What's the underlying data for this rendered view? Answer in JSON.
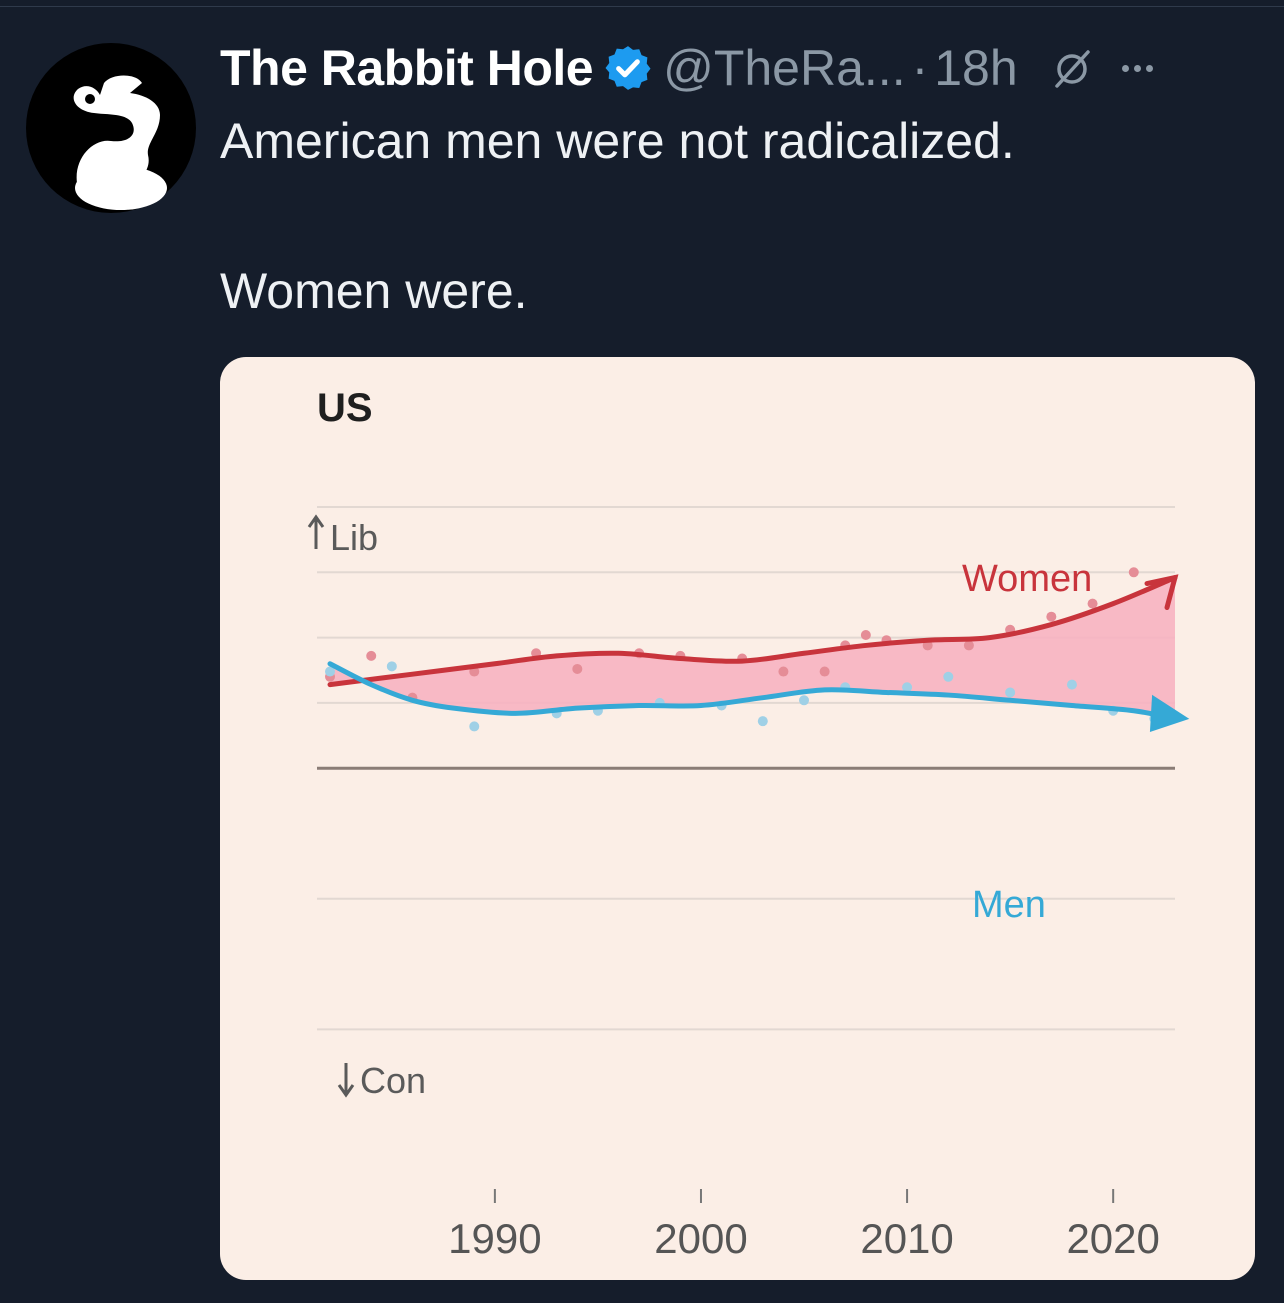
{
  "tweet": {
    "author_name": "The Rabbit Hole",
    "handle": "@TheRa...",
    "separator": "·",
    "time": "18h",
    "text_line1": "American men were not radicalized.",
    "text_line2": "Women were."
  },
  "icons": {
    "avatar": "rabbit-logo",
    "verified": "verified-badge-icon",
    "grok": "grok-icon",
    "more": "more-icon"
  },
  "colors": {
    "background": "#151d2b",
    "women": "#c8343c",
    "men": "#35a9d6",
    "gap_fill": "#f7b3c1",
    "card": "#fbeee6",
    "verified": "#1d9bf0"
  },
  "chart_data": {
    "type": "line",
    "title": "US",
    "ylabel_top": "Lib",
    "ylabel_bottom": "Con",
    "x_ticks": [
      1990,
      2000,
      2010,
      2020
    ],
    "xlim": [
      1982,
      2023
    ],
    "ylim": [
      -1.5,
      1.0
    ],
    "grid": true,
    "series": [
      {
        "name": "Women",
        "x": [
          1982,
          1986,
          1990,
          1993,
          1996,
          1999,
          2002,
          2005,
          2008,
          2011,
          2014,
          2017,
          2020,
          2023
        ],
        "values": [
          0.32,
          0.36,
          0.4,
          0.43,
          0.44,
          0.42,
          0.41,
          0.44,
          0.47,
          0.49,
          0.5,
          0.55,
          0.63,
          0.73
        ]
      },
      {
        "name": "Men",
        "x": [
          1982,
          1984,
          1986,
          1988,
          1991,
          1994,
          1997,
          2000,
          2003,
          2006,
          2009,
          2012,
          2015,
          2018,
          2021,
          2023
        ],
        "values": [
          0.4,
          0.32,
          0.26,
          0.23,
          0.21,
          0.23,
          0.24,
          0.24,
          0.27,
          0.3,
          0.29,
          0.28,
          0.26,
          0.24,
          0.22,
          0.19
        ]
      }
    ],
    "scatter_women": {
      "x": [
        1982,
        1984,
        1986,
        1989,
        1992,
        1994,
        1997,
        1999,
        2002,
        2004,
        2006,
        2007,
        2008,
        2009,
        2011,
        2013,
        2015,
        2017,
        2019,
        2021
      ],
      "values": [
        0.35,
        0.43,
        0.27,
        0.37,
        0.44,
        0.38,
        0.44,
        0.43,
        0.42,
        0.37,
        0.37,
        0.47,
        0.51,
        0.49,
        0.47,
        0.47,
        0.53,
        0.58,
        0.63,
        0.75
      ]
    },
    "scatter_men": {
      "x": [
        1982,
        1985,
        1989,
        1993,
        1995,
        1998,
        2001,
        2003,
        2005,
        2007,
        2010,
        2012,
        2015,
        2018,
        2020,
        2022
      ],
      "values": [
        0.37,
        0.39,
        0.16,
        0.21,
        0.22,
        0.25,
        0.24,
        0.18,
        0.26,
        0.31,
        0.31,
        0.35,
        0.29,
        0.32,
        0.22,
        0.19
      ]
    }
  }
}
